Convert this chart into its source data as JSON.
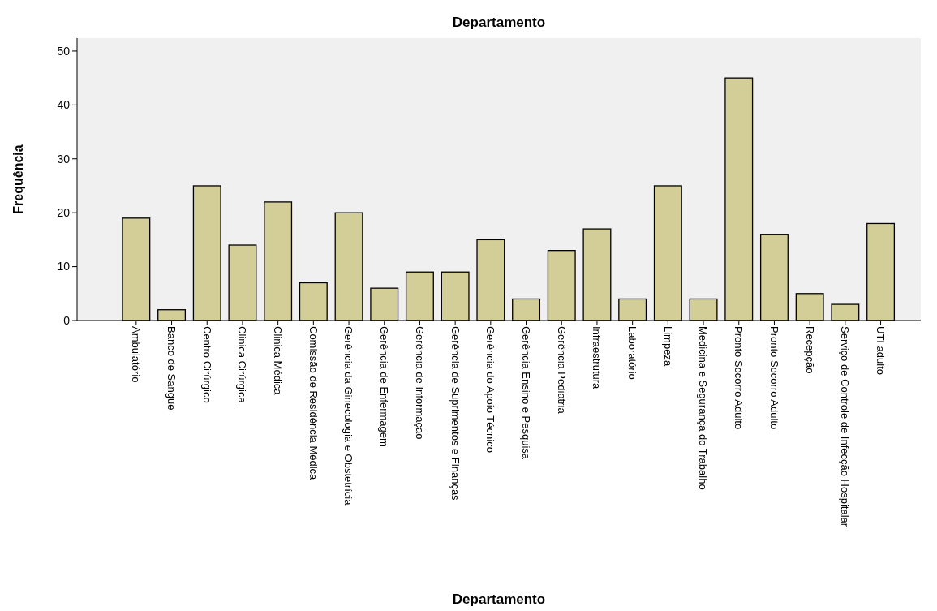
{
  "chart_data": {
    "type": "bar",
    "title": "Departamento",
    "xlabel": "Departamento",
    "ylabel": "Frequência",
    "categories": [
      "Ambulatório",
      "Banco de Sangue",
      "Centro Cirúrgico",
      "Clinica Cirúrgica",
      "Clinica Médica",
      "Comissão de Residência Médica",
      "Gerência da Ginecologia e Obstetrícia",
      "Gerência de Enfermagem",
      "Gerência de Informação",
      "Gerência de Suprimentos e Finanças",
      "Gerência do Apoio Técnico",
      "Gerência Ensino e Pesquisa",
      "Gerência Pediatria",
      "Infraestrutura",
      "Laboratório",
      "Limpeza",
      "Medicina e Segurança do Trabalho",
      "Pronto Socorro Adulto",
      "Pronto Socorro Adulto",
      "Recepção",
      "Serviço de Controle de Infecção Hospitalar",
      "UTI adulto"
    ],
    "values": [
      19,
      2,
      25,
      14,
      22,
      7,
      20,
      6,
      9,
      9,
      15,
      4,
      13,
      17,
      4,
      25,
      4,
      45,
      16,
      5,
      3,
      18
    ],
    "color": "#d3ce97",
    "ylim": [
      0,
      52.4
    ],
    "yticks": [
      0,
      10,
      20,
      30,
      40,
      50
    ],
    "grid": false
  }
}
